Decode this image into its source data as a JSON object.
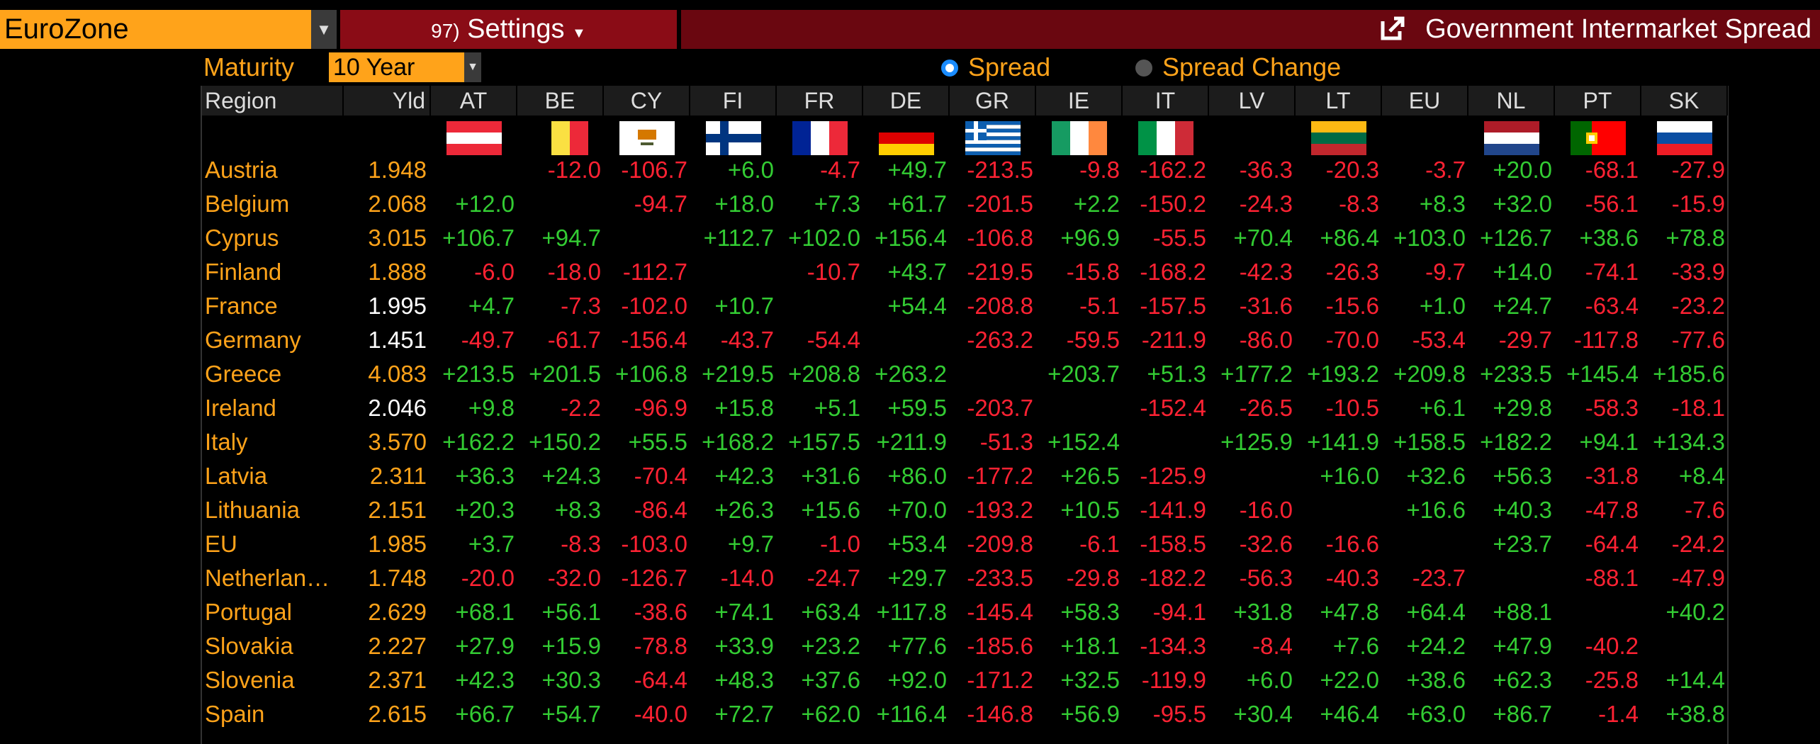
{
  "header": {
    "region_select": "EuroZone",
    "settings_number": "97)",
    "settings": "Settings",
    "title": "Government Intermarket Spread"
  },
  "controls": {
    "maturity_label": "Maturity",
    "maturity": "10 Year",
    "options": [
      {
        "label": "Spread",
        "selected": true
      },
      {
        "label": "Spread Change",
        "selected": false
      }
    ]
  },
  "table": {
    "columns": [
      "Region",
      "Yld",
      "AT",
      "BE",
      "CY",
      "FI",
      "FR",
      "DE",
      "GR",
      "IE",
      "IT",
      "LV",
      "LT",
      "EU",
      "NL",
      "PT",
      "SK"
    ],
    "rows": [
      {
        "yld_color": "orange",
        "cells": [
          "Austria",
          "1.948",
          null,
          "-12.0",
          "-106.7",
          "+6.0",
          "-4.7",
          "+49.7",
          "-213.5",
          "-9.8",
          "-162.2",
          "-36.3",
          "-20.3",
          "-3.7",
          "+20.0",
          "-68.1",
          "-27.9"
        ]
      },
      {
        "yld_color": "orange",
        "cells": [
          "Belgium",
          "2.068",
          "+12.0",
          null,
          "-94.7",
          "+18.0",
          "+7.3",
          "+61.7",
          "-201.5",
          "+2.2",
          "-150.2",
          "-24.3",
          "-8.3",
          "+8.3",
          "+32.0",
          "-56.1",
          "-15.9"
        ]
      },
      {
        "yld_color": "orange",
        "cells": [
          "Cyprus",
          "3.015",
          "+106.7",
          "+94.7",
          null,
          "+112.7",
          "+102.0",
          "+156.4",
          "-106.8",
          "+96.9",
          "-55.5",
          "+70.4",
          "+86.4",
          "+103.0",
          "+126.7",
          "+38.6",
          "+78.8"
        ]
      },
      {
        "yld_color": "orange",
        "cells": [
          "Finland",
          "1.888",
          "-6.0",
          "-18.0",
          "-112.7",
          null,
          "-10.7",
          "+43.7",
          "-219.5",
          "-15.8",
          "-168.2",
          "-42.3",
          "-26.3",
          "-9.7",
          "+14.0",
          "-74.1",
          "-33.9"
        ]
      },
      {
        "yld_color": "white",
        "cells": [
          "France",
          "1.995",
          "+4.7",
          "-7.3",
          "-102.0",
          "+10.7",
          null,
          "+54.4",
          "-208.8",
          "-5.1",
          "-157.5",
          "-31.6",
          "-15.6",
          "+1.0",
          "+24.7",
          "-63.4",
          "-23.2"
        ]
      },
      {
        "yld_color": "white",
        "cells": [
          "Germany",
          "1.451",
          "-49.7",
          "-61.7",
          "-156.4",
          "-43.7",
          "-54.4",
          null,
          "-263.2",
          "-59.5",
          "-211.9",
          "-86.0",
          "-70.0",
          "-53.4",
          "-29.7",
          "-117.8",
          "-77.6"
        ]
      },
      {
        "yld_color": "orange",
        "cells": [
          "Greece",
          "4.083",
          "+213.5",
          "+201.5",
          "+106.8",
          "+219.5",
          "+208.8",
          "+263.2",
          null,
          "+203.7",
          "+51.3",
          "+177.2",
          "+193.2",
          "+209.8",
          "+233.5",
          "+145.4",
          "+185.6"
        ]
      },
      {
        "yld_color": "white",
        "cells": [
          "Ireland",
          "2.046",
          "+9.8",
          "-2.2",
          "-96.9",
          "+15.8",
          "+5.1",
          "+59.5",
          "-203.7",
          null,
          "-152.4",
          "-26.5",
          "-10.5",
          "+6.1",
          "+29.8",
          "-58.3",
          "-18.1"
        ]
      },
      {
        "yld_color": "orange",
        "cells": [
          "Italy",
          "3.570",
          "+162.2",
          "+150.2",
          "+55.5",
          "+168.2",
          "+157.5",
          "+211.9",
          "-51.3",
          "+152.4",
          null,
          "+125.9",
          "+141.9",
          "+158.5",
          "+182.2",
          "+94.1",
          "+134.3"
        ]
      },
      {
        "yld_color": "orange",
        "cells": [
          "Latvia",
          "2.311",
          "+36.3",
          "+24.3",
          "-70.4",
          "+42.3",
          "+31.6",
          "+86.0",
          "-177.2",
          "+26.5",
          "-125.9",
          null,
          "+16.0",
          "+32.6",
          "+56.3",
          "-31.8",
          "+8.4"
        ]
      },
      {
        "yld_color": "orange",
        "cells": [
          "Lithuania",
          "2.151",
          "+20.3",
          "+8.3",
          "-86.4",
          "+26.3",
          "+15.6",
          "+70.0",
          "-193.2",
          "+10.5",
          "-141.9",
          "-16.0",
          null,
          "+16.6",
          "+40.3",
          "-47.8",
          "-7.6"
        ]
      },
      {
        "yld_color": "orange",
        "cells": [
          "EU",
          "1.985",
          "+3.7",
          "-8.3",
          "-103.0",
          "+9.7",
          "-1.0",
          "+53.4",
          "-209.8",
          "-6.1",
          "-158.5",
          "-32.6",
          "-16.6",
          null,
          "+23.7",
          "-64.4",
          "-24.2"
        ]
      },
      {
        "yld_color": "orange",
        "cells": [
          "Netherlan…",
          "1.748",
          "-20.0",
          "-32.0",
          "-126.7",
          "-14.0",
          "-24.7",
          "+29.7",
          "-233.5",
          "-29.8",
          "-182.2",
          "-56.3",
          "-40.3",
          "-23.7",
          null,
          "-88.1",
          "-47.9"
        ]
      },
      {
        "yld_color": "orange",
        "cells": [
          "Portugal",
          "2.629",
          "+68.1",
          "+56.1",
          "-38.6",
          "+74.1",
          "+63.4",
          "+117.8",
          "-145.4",
          "+58.3",
          "-94.1",
          "+31.8",
          "+47.8",
          "+64.4",
          "+88.1",
          null,
          "+40.2"
        ]
      },
      {
        "yld_color": "orange",
        "cells": [
          "Slovakia",
          "2.227",
          "+27.9",
          "+15.9",
          "-78.8",
          "+33.9",
          "+23.2",
          "+77.6",
          "-185.6",
          "+18.1",
          "-134.3",
          "-8.4",
          "+7.6",
          "+24.2",
          "+47.9",
          "-40.2",
          null
        ]
      },
      {
        "yld_color": "orange",
        "cells": [
          "Slovenia",
          "2.371",
          "+42.3",
          "+30.3",
          "-64.4",
          "+48.3",
          "+37.6",
          "+92.0",
          "-171.2",
          "+32.5",
          "-119.9",
          "+6.0",
          "+22.0",
          "+38.6",
          "+62.3",
          "-25.8",
          "+14.4"
        ]
      },
      {
        "yld_color": "orange",
        "cells": [
          "Spain",
          "2.615",
          "+66.7",
          "+54.7",
          "-40.0",
          "+72.7",
          "+62.0",
          "+116.4",
          "-146.8",
          "+56.9",
          "-95.5",
          "+30.4",
          "+46.4",
          "+63.0",
          "+86.7",
          "-1.4",
          "+38.8"
        ]
      }
    ]
  }
}
